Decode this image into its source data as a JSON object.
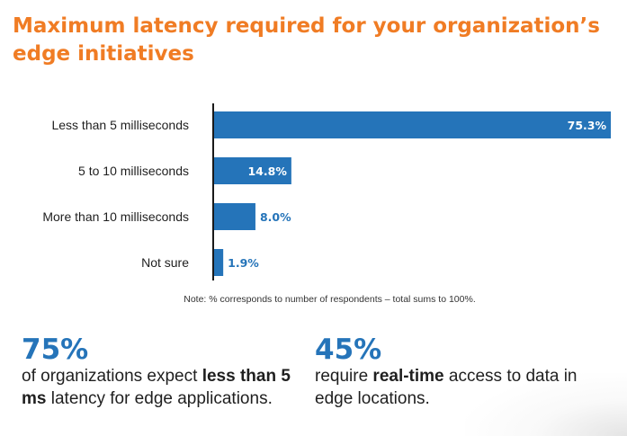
{
  "title": "Maximum latency required for your organization’s edge initiatives",
  "note": "Note: % corresponds to number of respondents – total sums to 100%.",
  "colors": {
    "title": "#f07c24",
    "bar": "#2574b9",
    "label_inside": "#ffffff",
    "label_outside": "#2574b9",
    "axis": "#1a1a1a"
  },
  "chart_data": {
    "type": "bar",
    "orientation": "horizontal",
    "title": "Maximum latency required for your organization’s edge initiatives",
    "categories": [
      "Less than 5 milliseconds",
      "5 to 10 milliseconds",
      "More than 10 milliseconds",
      "Not sure"
    ],
    "values": [
      75.3,
      14.8,
      8.0,
      1.9
    ],
    "value_labels": [
      "75.3%",
      "14.8%",
      "8.0%",
      "1.9%"
    ],
    "xlim": [
      0,
      75.3
    ],
    "grid": false,
    "legend": "none"
  },
  "stats": [
    {
      "number": "75%",
      "parts": [
        {
          "text": "of organizations expect ",
          "bold": false
        },
        {
          "text": "less than 5 ms",
          "bold": true
        },
        {
          "text": " latency for edge applications.",
          "bold": false
        }
      ]
    },
    {
      "number": "45%",
      "parts": [
        {
          "text": "require ",
          "bold": false
        },
        {
          "text": "real-time",
          "bold": true
        },
        {
          "text": " access to data in edge locations.",
          "bold": false
        }
      ]
    }
  ]
}
